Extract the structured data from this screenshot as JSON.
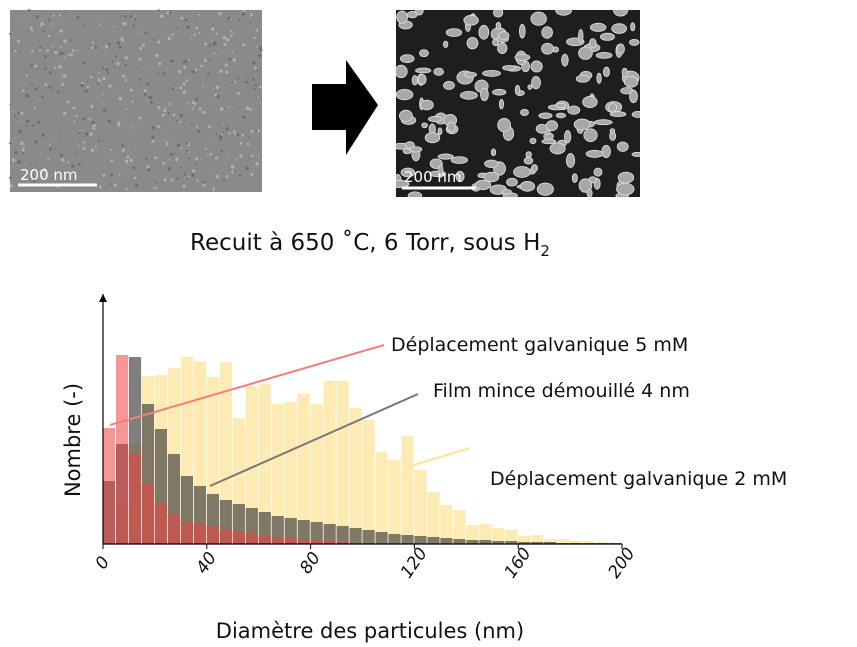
{
  "images": {
    "scale_bar_left": "200 nm",
    "scale_bar_right": "200 nm"
  },
  "caption": {
    "text": "Recuit à 650 ˚C, 6 Torr, sous H",
    "subscript": "2"
  },
  "chart_data": {
    "type": "histogram",
    "xlabel": "Diamètre des particules (nm)",
    "ylabel": "Nombre (-)",
    "xlim": [
      0,
      200
    ],
    "ylim": [
      0,
      250
    ],
    "xticks": [
      0,
      40,
      80,
      120,
      160,
      200
    ],
    "bins": [
      0,
      5,
      10,
      15,
      20,
      25,
      30,
      35,
      40,
      45,
      50,
      55,
      60,
      65,
      70,
      75,
      80,
      85,
      90,
      95,
      100,
      105,
      110,
      115,
      120,
      125,
      130,
      135,
      140,
      145,
      150,
      155,
      160,
      165,
      170,
      175,
      180,
      185,
      190,
      195,
      200
    ],
    "series": [
      {
        "name": "Déplacement galvanique 2 mM",
        "color": "#fce49a",
        "values": [
          0,
          40,
          100,
          168,
          169,
          176,
          187,
          182,
          167,
          182,
          126,
          158,
          160,
          140,
          142,
          150,
          140,
          163,
          163,
          136,
          124,
          92,
          84,
          108,
          74,
          52,
          39,
          34,
          19,
          20,
          16,
          14,
          8,
          9,
          5,
          5,
          3,
          3,
          2,
          1
        ]
      },
      {
        "name": "Film mince démouillé 4 nm",
        "color": "#3a3a3a",
        "values": [
          63,
          100,
          187,
          140,
          115,
          90,
          68,
          58,
          50,
          44,
          40,
          36,
          32,
          28,
          26,
          24,
          22,
          20,
          18,
          16,
          14,
          12,
          10,
          9,
          8,
          7,
          6,
          5,
          4,
          4,
          3,
          3,
          2,
          2,
          2,
          1,
          1,
          1,
          1,
          1
        ]
      },
      {
        "name": "Déplacement galvanique 5 mM",
        "color": "#f04040",
        "values": [
          116,
          189,
          90,
          60,
          40,
          30,
          22,
          20,
          18,
          14,
          12,
          10,
          8,
          7,
          6,
          5,
          4,
          3,
          2,
          1,
          0,
          0,
          0,
          0,
          0,
          0,
          0,
          0,
          0,
          0,
          0,
          0,
          0,
          0,
          0,
          0,
          0,
          0,
          0,
          0
        ]
      }
    ]
  }
}
